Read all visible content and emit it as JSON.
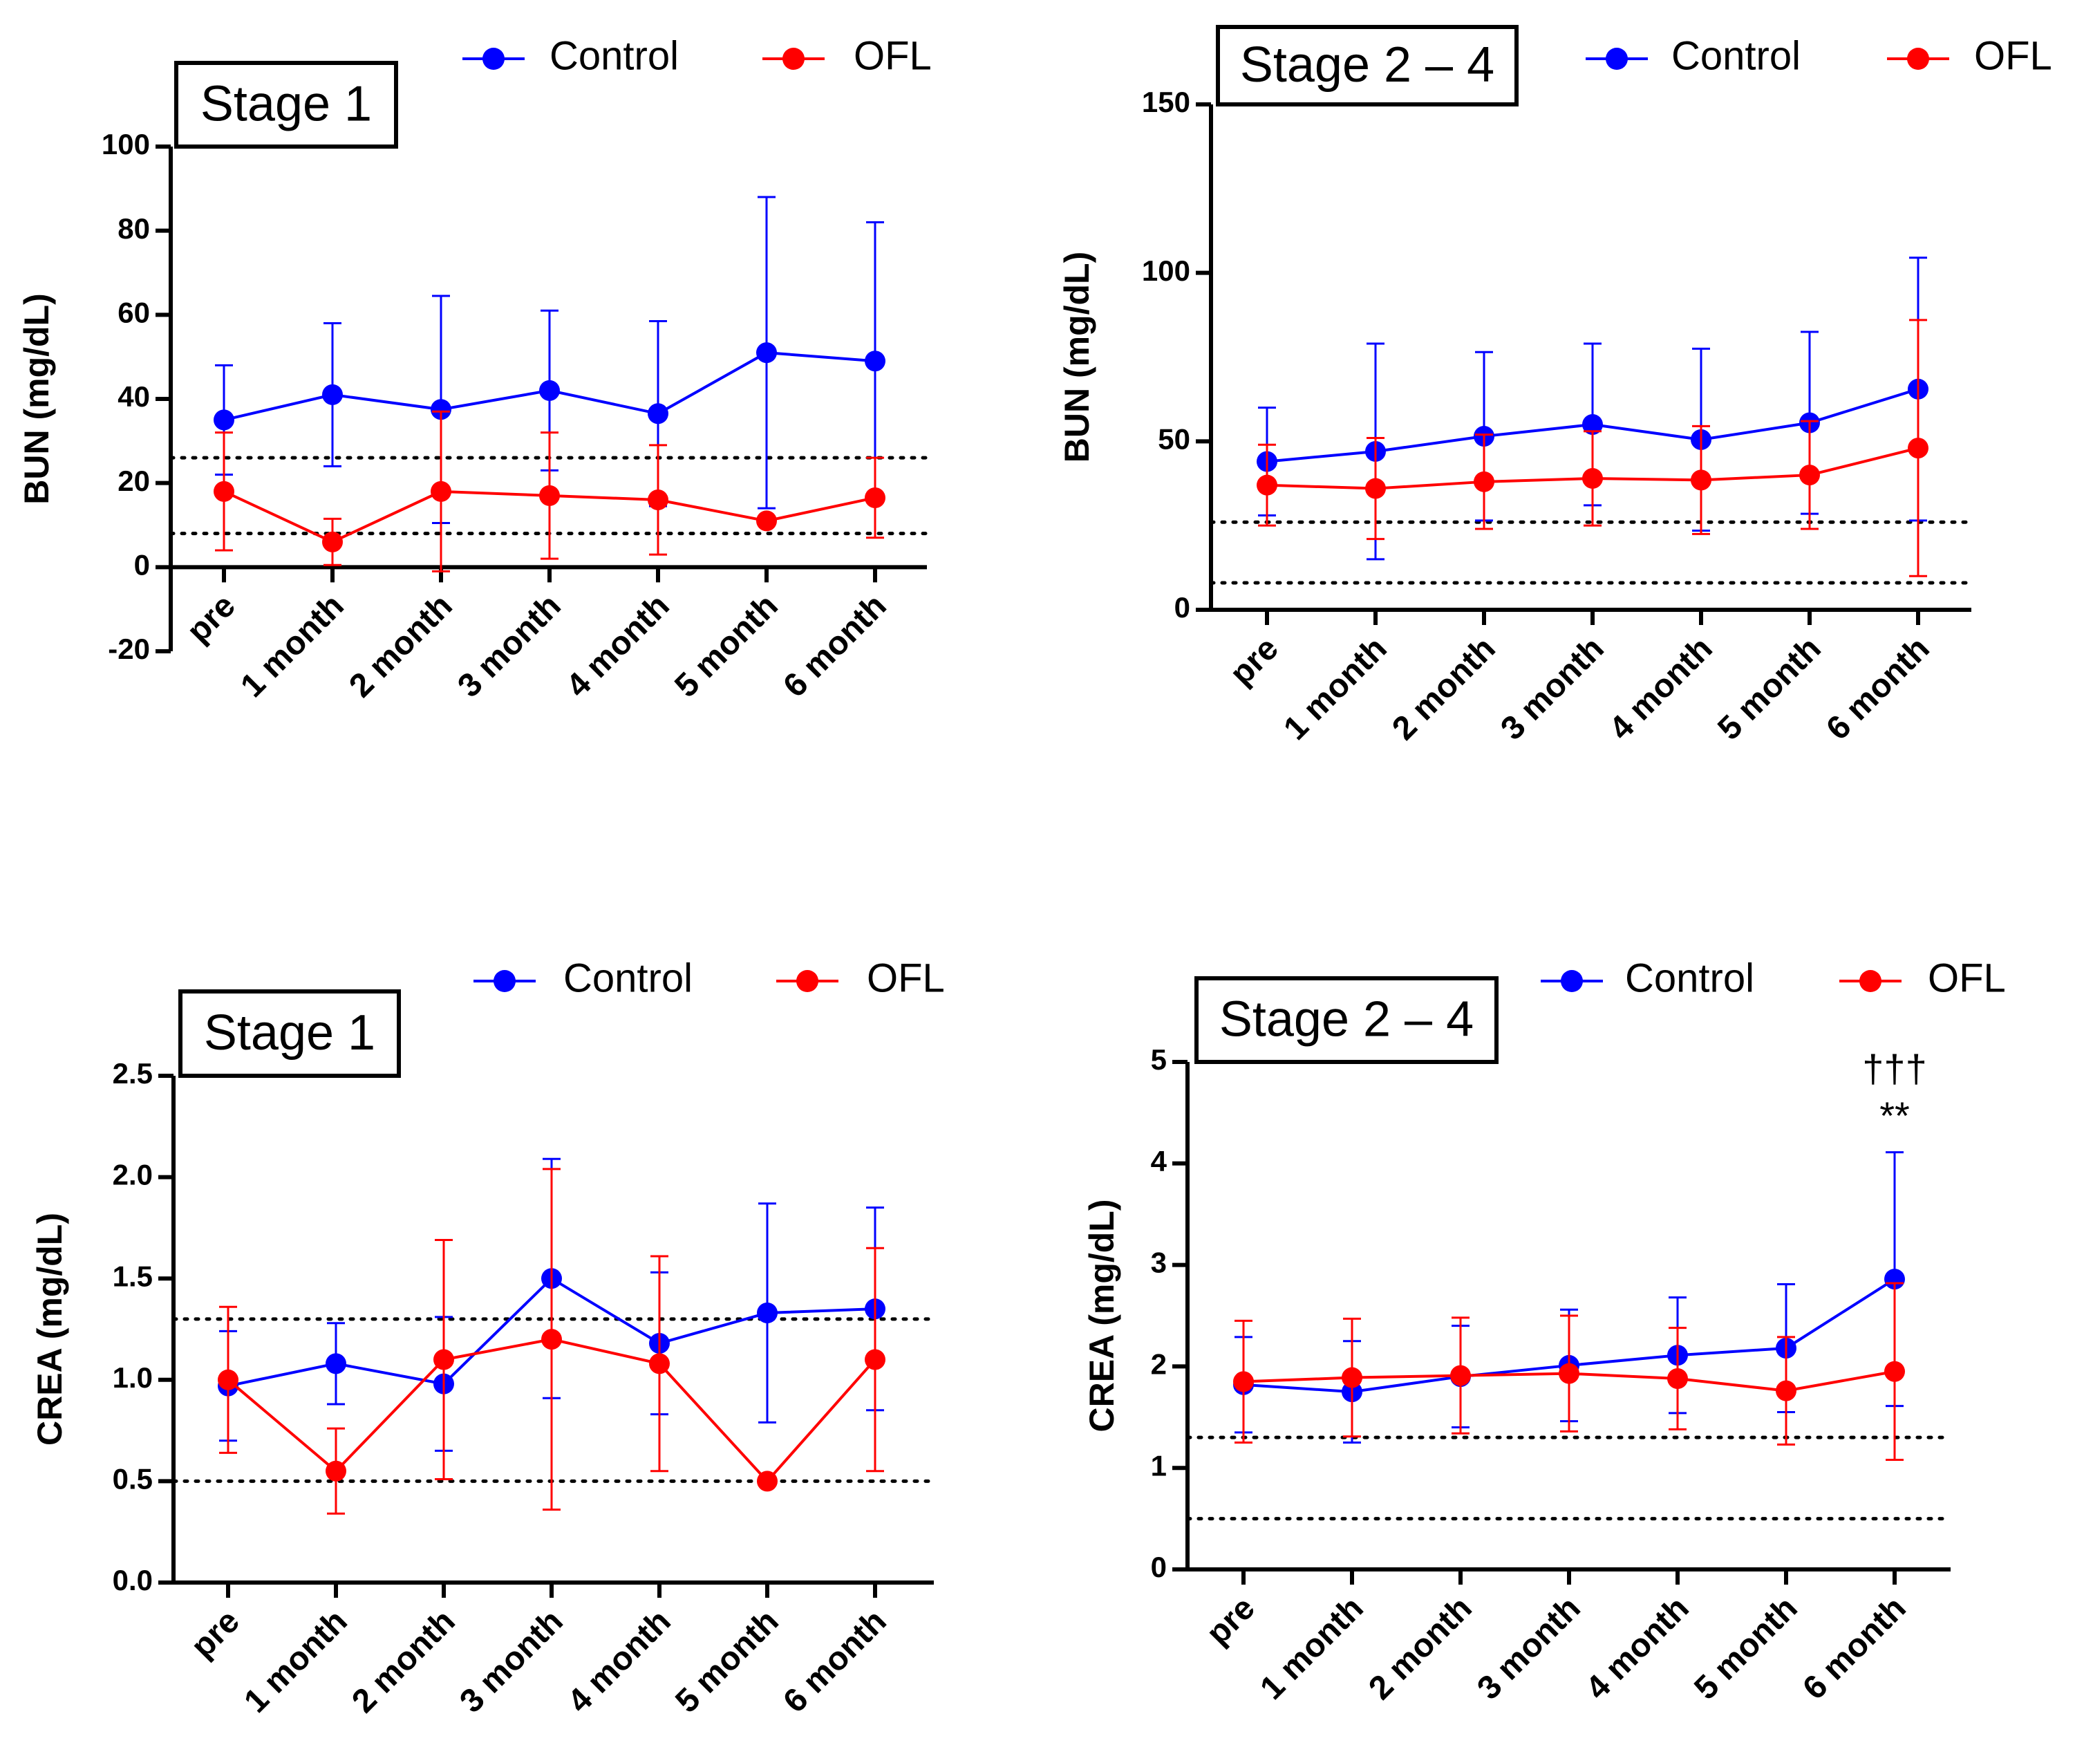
{
  "chart_data": [
    {
      "type": "line",
      "title": "Stage 1",
      "ylabel": "BUN (mg/dL)",
      "categories": [
        "pre",
        "1 month",
        "2 month",
        "3 month",
        "4 month",
        "5 month",
        "6 month"
      ],
      "series": [
        {
          "name": "Control",
          "color": "#0000ff",
          "values": [
            35,
            41,
            37.5,
            42,
            36.5,
            51,
            49
          ],
          "errors": [
            13,
            17,
            27,
            19,
            22,
            37,
            33
          ]
        },
        {
          "name": "OFL",
          "color": "#ff0000",
          "values": [
            18,
            6,
            18,
            17,
            16,
            11,
            16.5
          ],
          "errors": [
            14,
            5.5,
            19,
            15,
            13,
            1,
            9.5
          ]
        }
      ],
      "ylim": [
        -20,
        100
      ],
      "yticks": [
        -20,
        0,
        20,
        40,
        60,
        80,
        100
      ],
      "reference_lines": [
        8,
        26
      ]
    },
    {
      "type": "line",
      "title": "Stage 2 – 4",
      "ylabel": "BUN (mg/dL)",
      "categories": [
        "pre",
        "1 month",
        "2 month",
        "3 month",
        "4 month",
        "5 month",
        "6 month"
      ],
      "series": [
        {
          "name": "Control",
          "color": "#0000ff",
          "values": [
            44,
            47,
            51.5,
            55,
            50.5,
            55.5,
            65.5
          ],
          "errors": [
            16,
            32,
            25,
            24,
            27,
            27,
            39
          ]
        },
        {
          "name": "OFL",
          "color": "#ff0000",
          "values": [
            37,
            36,
            38,
            39,
            38.5,
            40,
            48
          ],
          "errors": [
            12,
            15,
            14,
            14,
            16,
            16,
            38
          ]
        }
      ],
      "ylim": [
        0,
        150
      ],
      "yticks": [
        0,
        50,
        100,
        150
      ],
      "reference_lines": [
        8,
        26
      ]
    },
    {
      "type": "line",
      "title": "Stage 1",
      "ylabel": "CREA (mg/dL)",
      "categories": [
        "pre",
        "1 month",
        "2 month",
        "3 month",
        "4 month",
        "5 month",
        "6 month"
      ],
      "series": [
        {
          "name": "Control",
          "color": "#0000ff",
          "values": [
            0.97,
            1.08,
            0.98,
            1.5,
            1.18,
            1.33,
            1.35
          ],
          "errors": [
            0.27,
            0.2,
            0.33,
            0.59,
            0.35,
            0.54,
            0.5
          ]
        },
        {
          "name": "OFL",
          "color": "#ff0000",
          "values": [
            1.0,
            0.55,
            1.1,
            1.2,
            1.08,
            0.5,
            1.1
          ],
          "errors": [
            0.36,
            0.21,
            0.59,
            0.84,
            0.53,
            0,
            0.55
          ]
        }
      ],
      "ylim": [
        0,
        2.5
      ],
      "yticks": [
        {
          "value": 0,
          "label": "0.0"
        },
        0.5,
        {
          "value": 1,
          "label": "1.0"
        },
        1.5,
        {
          "value": 2,
          "label": "2.0"
        },
        2.5
      ],
      "reference_lines": [
        0.5,
        1.3
      ]
    },
    {
      "type": "line",
      "title": "Stage 2 – 4",
      "ylabel": "CREA (mg/dL)",
      "categories": [
        "pre",
        "1 month",
        "2 month",
        "3 month",
        "4 month",
        "5 month",
        "6 month"
      ],
      "series": [
        {
          "name": "Control",
          "color": "#0000ff",
          "values": [
            1.82,
            1.75,
            1.9,
            2.01,
            2.11,
            2.18,
            2.86
          ],
          "errors": [
            0.47,
            0.5,
            0.5,
            0.55,
            0.57,
            0.63,
            1.25
          ]
        },
        {
          "name": "OFL",
          "color": "#ff0000",
          "values": [
            1.85,
            1.89,
            1.91,
            1.93,
            1.88,
            1.76,
            1.95
          ],
          "errors": [
            0.6,
            0.58,
            0.57,
            0.57,
            0.5,
            0.53,
            0.87
          ]
        }
      ],
      "ylim": [
        0,
        5
      ],
      "yticks": [
        0,
        1,
        2,
        3,
        4,
        5
      ],
      "reference_lines": [
        0.5,
        1.3
      ],
      "annotations": [
        "†††",
        "**"
      ]
    }
  ]
}
